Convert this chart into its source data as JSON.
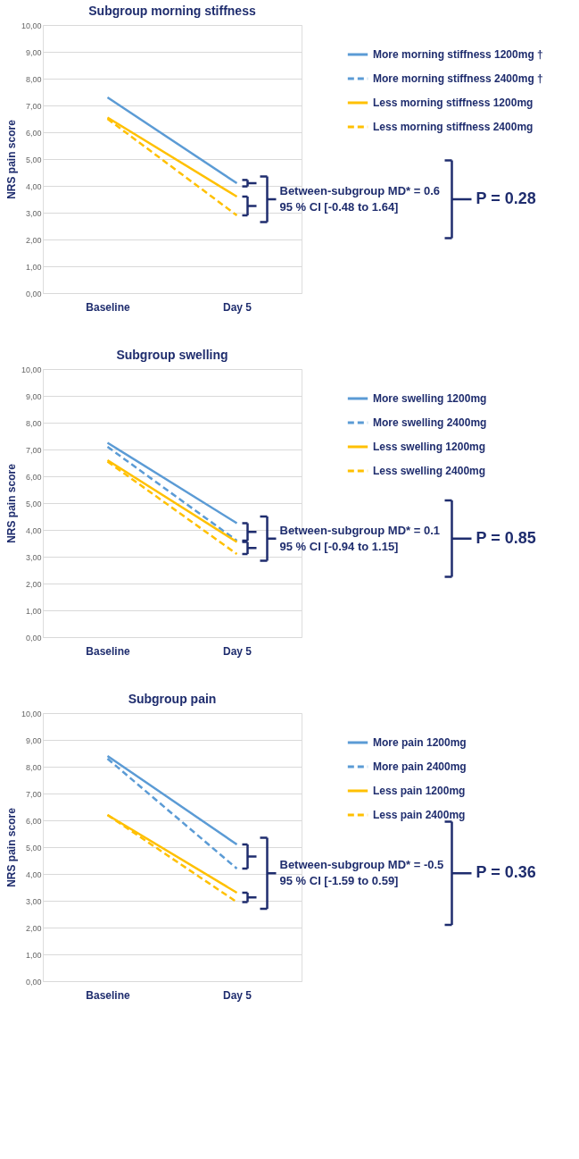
{
  "chart_data": [
    {
      "type": "line",
      "title": "Subgroup morning stiffness",
      "ylabel": "NRS pain score",
      "categories": [
        "Baseline",
        "Day 5"
      ],
      "ylim": [
        0,
        10
      ],
      "yticks": [
        {
          "value": 0,
          "label": "0,00"
        },
        {
          "value": 1,
          "label": "1,00"
        },
        {
          "value": 2,
          "label": "2,00"
        },
        {
          "value": 3,
          "label": "3,00"
        },
        {
          "value": 4,
          "label": "4,00"
        },
        {
          "value": 5,
          "label": "5,00"
        },
        {
          "value": 6,
          "label": "6,00"
        },
        {
          "value": 7,
          "label": "7,00"
        },
        {
          "value": 8,
          "label": "8,00"
        },
        {
          "value": 9,
          "label": "9,00"
        },
        {
          "value": 10,
          "label": "10,00"
        }
      ],
      "grid": "y",
      "legend": "right",
      "series": [
        {
          "name": "More morning stiffness 1200mg †",
          "color": "#5b9bd5",
          "line_style": "solid",
          "values": [
            7.3,
            4.1
          ]
        },
        {
          "name": "More morning stiffness 2400mg †",
          "color": "#5b9bd5",
          "line_style": "dashed",
          "values": [
            null,
            null
          ]
        },
        {
          "name": "Less morning stiffness 1200mg",
          "color": "#ffc000",
          "line_style": "solid",
          "values": [
            6.55,
            3.6
          ]
        },
        {
          "name": "Less morning stiffness 2400mg",
          "color": "#ffc000",
          "line_style": "dashed",
          "values": [
            6.5,
            2.9
          ]
        }
      ],
      "annotations": [
        "Between-subgroup MD* = 0.6",
        "95 % CI [-0.48 to 1.64]",
        "P = 0.28"
      ]
    },
    {
      "type": "line",
      "title": "Subgroup swelling",
      "ylabel": "NRS pain score",
      "categories": [
        "Baseline",
        "Day 5"
      ],
      "ylim": [
        0,
        10
      ],
      "yticks": [
        {
          "value": 0,
          "label": "0,00"
        },
        {
          "value": 1,
          "label": "1,00"
        },
        {
          "value": 2,
          "label": "2,00"
        },
        {
          "value": 3,
          "label": "3,00"
        },
        {
          "value": 4,
          "label": "4,00"
        },
        {
          "value": 5,
          "label": "5,00"
        },
        {
          "value": 6,
          "label": "6,00"
        },
        {
          "value": 7,
          "label": "7,00"
        },
        {
          "value": 8,
          "label": "8,00"
        },
        {
          "value": 9,
          "label": "9,00"
        },
        {
          "value": 10,
          "label": "10,00"
        }
      ],
      "grid": "y",
      "legend": "right",
      "series": [
        {
          "name": "More swelling 1200mg",
          "color": "#5b9bd5",
          "line_style": "solid",
          "values": [
            7.25,
            4.25
          ]
        },
        {
          "name": "More swelling 2400mg",
          "color": "#5b9bd5",
          "line_style": "dashed",
          "values": [
            7.1,
            3.6
          ]
        },
        {
          "name": "Less swelling 1200mg",
          "color": "#ffc000",
          "line_style": "solid",
          "values": [
            6.6,
            3.55
          ]
        },
        {
          "name": "Less swelling 2400mg",
          "color": "#ffc000",
          "line_style": "dashed",
          "values": [
            6.55,
            3.1
          ]
        }
      ],
      "annotations": [
        "Between-subgroup MD* = 0.1",
        "95 % CI [-0.94 to 1.15]",
        "P = 0.85"
      ]
    },
    {
      "type": "line",
      "title": "Subgroup pain",
      "ylabel": "NRS pain score",
      "categories": [
        "Baseline",
        "Day 5"
      ],
      "ylim": [
        0,
        10
      ],
      "yticks": [
        {
          "value": 0,
          "label": "0,00"
        },
        {
          "value": 1,
          "label": "1,00"
        },
        {
          "value": 2,
          "label": "2,00"
        },
        {
          "value": 3,
          "label": "3,00"
        },
        {
          "value": 4,
          "label": "4,00"
        },
        {
          "value": 5,
          "label": "5,00"
        },
        {
          "value": 6,
          "label": "6,00"
        },
        {
          "value": 7,
          "label": "7,00"
        },
        {
          "value": 8,
          "label": "8,00"
        },
        {
          "value": 9,
          "label": "9,00"
        },
        {
          "value": 10,
          "label": "10,00"
        }
      ],
      "grid": "y",
      "legend": "right",
      "series": [
        {
          "name": "More pain 1200mg",
          "color": "#5b9bd5",
          "line_style": "solid",
          "values": [
            8.4,
            5.1
          ]
        },
        {
          "name": "More pain 2400mg",
          "color": "#5b9bd5",
          "line_style": "dashed",
          "values": [
            8.3,
            4.2
          ]
        },
        {
          "name": "Less pain 1200mg",
          "color": "#ffc000",
          "line_style": "solid",
          "values": [
            6.2,
            3.3
          ]
        },
        {
          "name": "Less pain 2400mg",
          "color": "#ffc000",
          "line_style": "dashed",
          "values": [
            6.2,
            2.95
          ]
        }
      ],
      "annotations": [
        "Between-subgroup MD* = -0.5",
        "95 % CI [-1.59 to 0.59]",
        "P = 0.36"
      ]
    }
  ]
}
